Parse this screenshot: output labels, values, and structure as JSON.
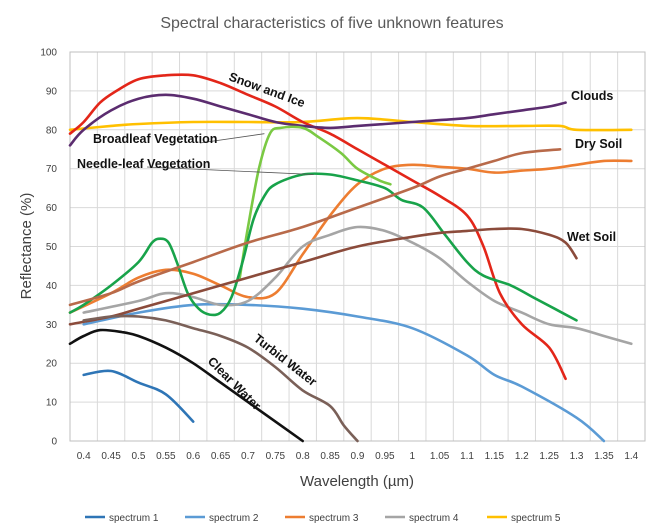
{
  "chart_data": {
    "type": "line",
    "title": "Spectral characteristics of five unknown features",
    "xlabel": "Wavelength (µm)",
    "ylabel": "Reflectance (%)",
    "xlim": [
      0.375,
      1.425
    ],
    "ylim": [
      0,
      100
    ],
    "x_ticks": [
      "0.4",
      "0.45",
      "0.5",
      "0.55",
      "0.6",
      "0.65",
      "0.7",
      "0.75",
      "0.8",
      "0.85",
      "0.9",
      "0.95",
      "1",
      "1.05",
      "1.1",
      "1.15",
      "1.2",
      "1.25",
      "1.3",
      "1.35",
      "1.4"
    ],
    "y_ticks": [
      "0",
      "10",
      "20",
      "30",
      "40",
      "50",
      "60",
      "70",
      "80",
      "90",
      "100"
    ],
    "grid": true,
    "legend_position": "bottom",
    "legend": [
      {
        "name": "spectrum 1",
        "color": "#2e75b6"
      },
      {
        "name": "spectrum 2",
        "color": "#5b9bd5"
      },
      {
        "name": "spectrum 3",
        "color": "#ed7d31"
      },
      {
        "name": "spectrum 4",
        "color": "#a5a5a5"
      },
      {
        "name": "spectrum 5",
        "color": "#ffc000"
      }
    ],
    "series": [
      {
        "color": "#2e75b6",
        "points": [
          [
            0.4,
            17
          ],
          [
            0.45,
            18
          ],
          [
            0.5,
            15
          ],
          [
            0.55,
            12
          ],
          [
            0.6,
            5
          ]
        ]
      },
      {
        "color": "#5b9bd5",
        "points": [
          [
            0.4,
            30
          ],
          [
            0.5,
            33
          ],
          [
            0.6,
            35
          ],
          [
            0.7,
            35
          ],
          [
            0.8,
            34
          ],
          [
            0.9,
            32
          ],
          [
            1.0,
            29
          ],
          [
            1.1,
            22
          ],
          [
            1.15,
            17
          ],
          [
            1.2,
            14
          ],
          [
            1.3,
            6
          ],
          [
            1.35,
            0
          ]
        ]
      },
      {
        "color": "#ed7d31",
        "points": [
          [
            0.375,
            33
          ],
          [
            0.45,
            38
          ],
          [
            0.5,
            42
          ],
          [
            0.55,
            44
          ],
          [
            0.6,
            43
          ],
          [
            0.65,
            40
          ],
          [
            0.7,
            37
          ],
          [
            0.75,
            38
          ],
          [
            0.8,
            48
          ],
          [
            0.85,
            58
          ],
          [
            0.9,
            66
          ],
          [
            0.95,
            70
          ],
          [
            1.0,
            71
          ],
          [
            1.05,
            70.5
          ],
          [
            1.1,
            70
          ],
          [
            1.15,
            69
          ],
          [
            1.2,
            69.5
          ],
          [
            1.25,
            70
          ],
          [
            1.3,
            71
          ],
          [
            1.35,
            72
          ],
          [
            1.4,
            72
          ]
        ]
      },
      {
        "color": "#a5a5a5",
        "points": [
          [
            0.4,
            33
          ],
          [
            0.5,
            36
          ],
          [
            0.55,
            38
          ],
          [
            0.6,
            37
          ],
          [
            0.65,
            35
          ],
          [
            0.7,
            36
          ],
          [
            0.75,
            42
          ],
          [
            0.8,
            50
          ],
          [
            0.85,
            53
          ],
          [
            0.9,
            55
          ],
          [
            0.95,
            54
          ],
          [
            1.0,
            51
          ],
          [
            1.05,
            47
          ],
          [
            1.1,
            41
          ],
          [
            1.15,
            36
          ],
          [
            1.2,
            33
          ],
          [
            1.25,
            30
          ],
          [
            1.3,
            29
          ],
          [
            1.35,
            27
          ],
          [
            1.4,
            25
          ]
        ]
      },
      {
        "color": "#ffc000",
        "points": [
          [
            0.375,
            80
          ],
          [
            0.45,
            81
          ],
          [
            0.5,
            81.5
          ],
          [
            0.6,
            82
          ],
          [
            0.7,
            82
          ],
          [
            0.8,
            82
          ],
          [
            0.9,
            83
          ],
          [
            1.0,
            82
          ],
          [
            1.1,
            81
          ],
          [
            1.2,
            81
          ],
          [
            1.27,
            81
          ],
          [
            1.3,
            80
          ],
          [
            1.4,
            80
          ]
        ]
      }
    ],
    "features": [
      {
        "label": "Snow and Ice",
        "color": "#e32619",
        "points": [
          [
            0.375,
            79
          ],
          [
            0.4,
            82
          ],
          [
            0.43,
            87
          ],
          [
            0.46,
            90
          ],
          [
            0.5,
            93
          ],
          [
            0.55,
            94
          ],
          [
            0.6,
            94
          ],
          [
            0.65,
            92
          ],
          [
            0.7,
            89
          ],
          [
            0.75,
            86
          ],
          [
            0.8,
            82
          ],
          [
            0.85,
            79
          ],
          [
            0.9,
            75
          ],
          [
            0.95,
            71
          ],
          [
            1.0,
            67
          ],
          [
            1.05,
            63
          ],
          [
            1.1,
            58
          ],
          [
            1.13,
            50
          ],
          [
            1.16,
            38
          ],
          [
            1.2,
            30
          ],
          [
            1.25,
            24
          ],
          [
            1.28,
            16
          ]
        ]
      },
      {
        "label": "Clouds",
        "color": "#5b2c6f",
        "points": [
          [
            0.375,
            76
          ],
          [
            0.4,
            80
          ],
          [
            0.45,
            85
          ],
          [
            0.5,
            88
          ],
          [
            0.55,
            89
          ],
          [
            0.6,
            88
          ],
          [
            0.65,
            86
          ],
          [
            0.7,
            84
          ],
          [
            0.75,
            82
          ],
          [
            0.8,
            81
          ],
          [
            0.85,
            80.5
          ],
          [
            0.9,
            81
          ],
          [
            0.95,
            81.5
          ],
          [
            1.0,
            82
          ],
          [
            1.05,
            82.5
          ],
          [
            1.1,
            83
          ],
          [
            1.15,
            84
          ],
          [
            1.2,
            85
          ],
          [
            1.25,
            86
          ],
          [
            1.28,
            87
          ]
        ]
      },
      {
        "label": "Broadleaf Vegetation",
        "color": "#7ac943",
        "points": [
          [
            0.685,
            42
          ],
          [
            0.7,
            55
          ],
          [
            0.72,
            70
          ],
          [
            0.74,
            79
          ],
          [
            0.76,
            80.5
          ],
          [
            0.8,
            80.5
          ],
          [
            0.83,
            78
          ],
          [
            0.87,
            74
          ],
          [
            0.9,
            70
          ],
          [
            0.94,
            67
          ],
          [
            0.96,
            66
          ]
        ]
      },
      {
        "label": "Needle-leaf Vegetation",
        "color": "#18a34a",
        "points": [
          [
            0.375,
            33
          ],
          [
            0.4,
            35
          ],
          [
            0.45,
            40
          ],
          [
            0.5,
            46
          ],
          [
            0.525,
            51
          ],
          [
            0.54,
            52
          ],
          [
            0.555,
            51
          ],
          [
            0.57,
            46
          ],
          [
            0.59,
            38
          ],
          [
            0.61,
            34
          ],
          [
            0.63,
            32.5
          ],
          [
            0.65,
            33
          ],
          [
            0.67,
            37
          ],
          [
            0.69,
            46
          ],
          [
            0.71,
            57
          ],
          [
            0.73,
            63
          ],
          [
            0.75,
            66
          ],
          [
            0.8,
            68.5
          ],
          [
            0.85,
            68.5
          ],
          [
            0.9,
            67
          ],
          [
            0.95,
            65
          ],
          [
            0.98,
            62
          ],
          [
            1.02,
            60
          ],
          [
            1.06,
            53
          ],
          [
            1.1,
            46
          ],
          [
            1.13,
            42.5
          ],
          [
            1.18,
            40
          ],
          [
            1.22,
            37
          ],
          [
            1.26,
            34
          ],
          [
            1.3,
            31
          ]
        ]
      },
      {
        "label": "Dry Soil",
        "color": "#b86a4a",
        "points": [
          [
            0.375,
            35
          ],
          [
            0.45,
            38
          ],
          [
            0.5,
            41
          ],
          [
            0.6,
            46
          ],
          [
            0.7,
            51
          ],
          [
            0.8,
            55
          ],
          [
            0.9,
            60
          ],
          [
            1.0,
            65
          ],
          [
            1.05,
            68
          ],
          [
            1.1,
            70
          ],
          [
            1.15,
            72
          ],
          [
            1.2,
            74
          ],
          [
            1.27,
            75
          ]
        ]
      },
      {
        "label": "Wet Soil",
        "color": "#8b4b3b",
        "points": [
          [
            0.375,
            30
          ],
          [
            0.45,
            32
          ],
          [
            0.5,
            34
          ],
          [
            0.6,
            38
          ],
          [
            0.7,
            42
          ],
          [
            0.8,
            46
          ],
          [
            0.9,
            50
          ],
          [
            1.0,
            52.5
          ],
          [
            1.05,
            53.5
          ],
          [
            1.1,
            54
          ],
          [
            1.15,
            54.5
          ],
          [
            1.2,
            54.5
          ],
          [
            1.25,
            53
          ],
          [
            1.28,
            51
          ],
          [
            1.3,
            47
          ]
        ]
      },
      {
        "label": "Turbid Water",
        "color": "#7a6058",
        "points": [
          [
            0.4,
            31
          ],
          [
            0.45,
            32
          ],
          [
            0.5,
            32
          ],
          [
            0.55,
            31
          ],
          [
            0.6,
            29
          ],
          [
            0.65,
            27
          ],
          [
            0.7,
            24
          ],
          [
            0.75,
            19
          ],
          [
            0.8,
            13
          ],
          [
            0.85,
            9
          ],
          [
            0.875,
            4
          ],
          [
            0.9,
            0
          ]
        ]
      },
      {
        "label": "Clear Water",
        "color": "#111111",
        "points": [
          [
            0.375,
            25
          ],
          [
            0.4,
            27
          ],
          [
            0.43,
            28.5
          ],
          [
            0.47,
            28
          ],
          [
            0.5,
            27
          ],
          [
            0.55,
            24
          ],
          [
            0.6,
            20
          ],
          [
            0.65,
            15
          ],
          [
            0.7,
            10
          ],
          [
            0.75,
            5
          ],
          [
            0.8,
            0
          ]
        ]
      }
    ],
    "annotations": [
      "Snow and Ice",
      "Clouds",
      "Broadleaf Vegetation",
      "Needle-leaf Vegetation",
      "Dry Soil",
      "Wet Soil",
      "Turbid Water",
      "Clear Water"
    ]
  }
}
